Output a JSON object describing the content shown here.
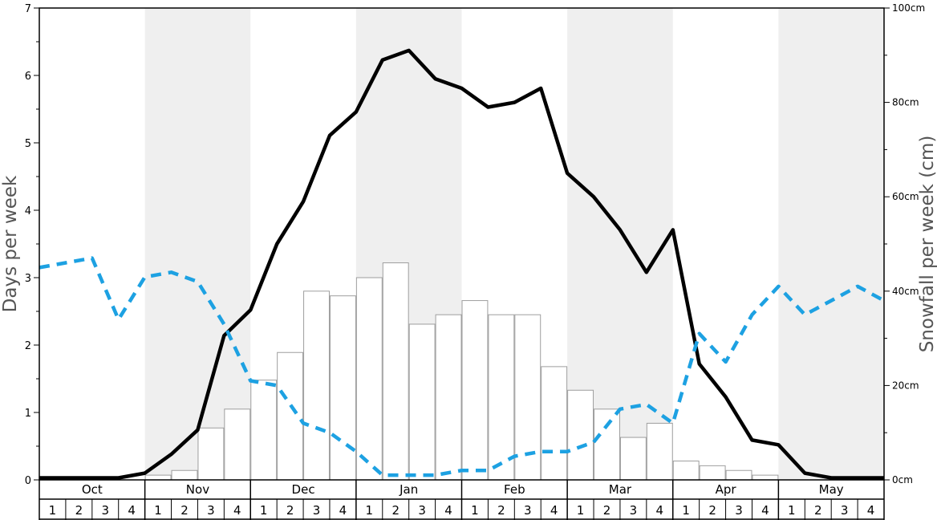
{
  "chart_data": {
    "type": "bar+line",
    "title": "",
    "ylabel_left": "Days per week",
    "ylabel_right": "Snowfall per week (cm)",
    "ylim_left": [
      0,
      7
    ],
    "ylim_right": [
      0,
      100
    ],
    "left_ticks": [
      "0",
      "1",
      "2",
      "3",
      "4",
      "5",
      "6",
      "7"
    ],
    "right_ticks": [
      "0cm",
      "20cm",
      "40cm",
      "60cm",
      "80cm",
      "100cm"
    ],
    "months": [
      "Oct",
      "Nov",
      "Dec",
      "Jan",
      "Feb",
      "Mar",
      "Apr",
      "May"
    ],
    "week_labels": [
      "1",
      "2",
      "3",
      "4"
    ],
    "grid": false,
    "colors": {
      "bar_fill": "#ffffff",
      "bar_stroke": "#9e9e9e",
      "shade": "#efefef",
      "days_line": "#000000",
      "snowfall_line": "#1da1e2"
    },
    "series": [
      {
        "kind": "bar",
        "axis": "left",
        "values": [
          0,
          0,
          0,
          0,
          0.07,
          0.14,
          0.77,
          1.05,
          1.48,
          1.89,
          2.8,
          2.73,
          3.0,
          3.22,
          2.31,
          2.45,
          2.66,
          2.45,
          2.45,
          1.68,
          1.33,
          1.05,
          0.63,
          0.84,
          0.28,
          0.21,
          0.14,
          0.07,
          0,
          0,
          0,
          0
        ]
      },
      {
        "kind": "line",
        "style": "solid",
        "axis": "left",
        "values": [
          0.03,
          0.03,
          0.03,
          0.03,
          0.1,
          0.38,
          0.74,
          2.14,
          2.52,
          3.5,
          4.13,
          5.11,
          5.46,
          6.23,
          6.37,
          5.95,
          5.81,
          5.53,
          5.6,
          5.81,
          4.55,
          4.2,
          3.71,
          3.08,
          3.71,
          1.72,
          1.23,
          0.59,
          0.52,
          0.1,
          0.03,
          0.03,
          0.03
        ]
      },
      {
        "kind": "line",
        "style": "dashed",
        "axis": "right",
        "values": [
          45,
          46,
          47,
          34,
          43,
          44,
          42,
          33,
          21,
          20,
          12,
          10,
          6,
          1,
          1,
          1,
          2,
          2,
          5,
          6,
          6,
          8,
          15,
          16,
          12,
          31,
          25,
          35,
          41,
          35,
          38,
          41,
          38
        ]
      }
    ]
  }
}
